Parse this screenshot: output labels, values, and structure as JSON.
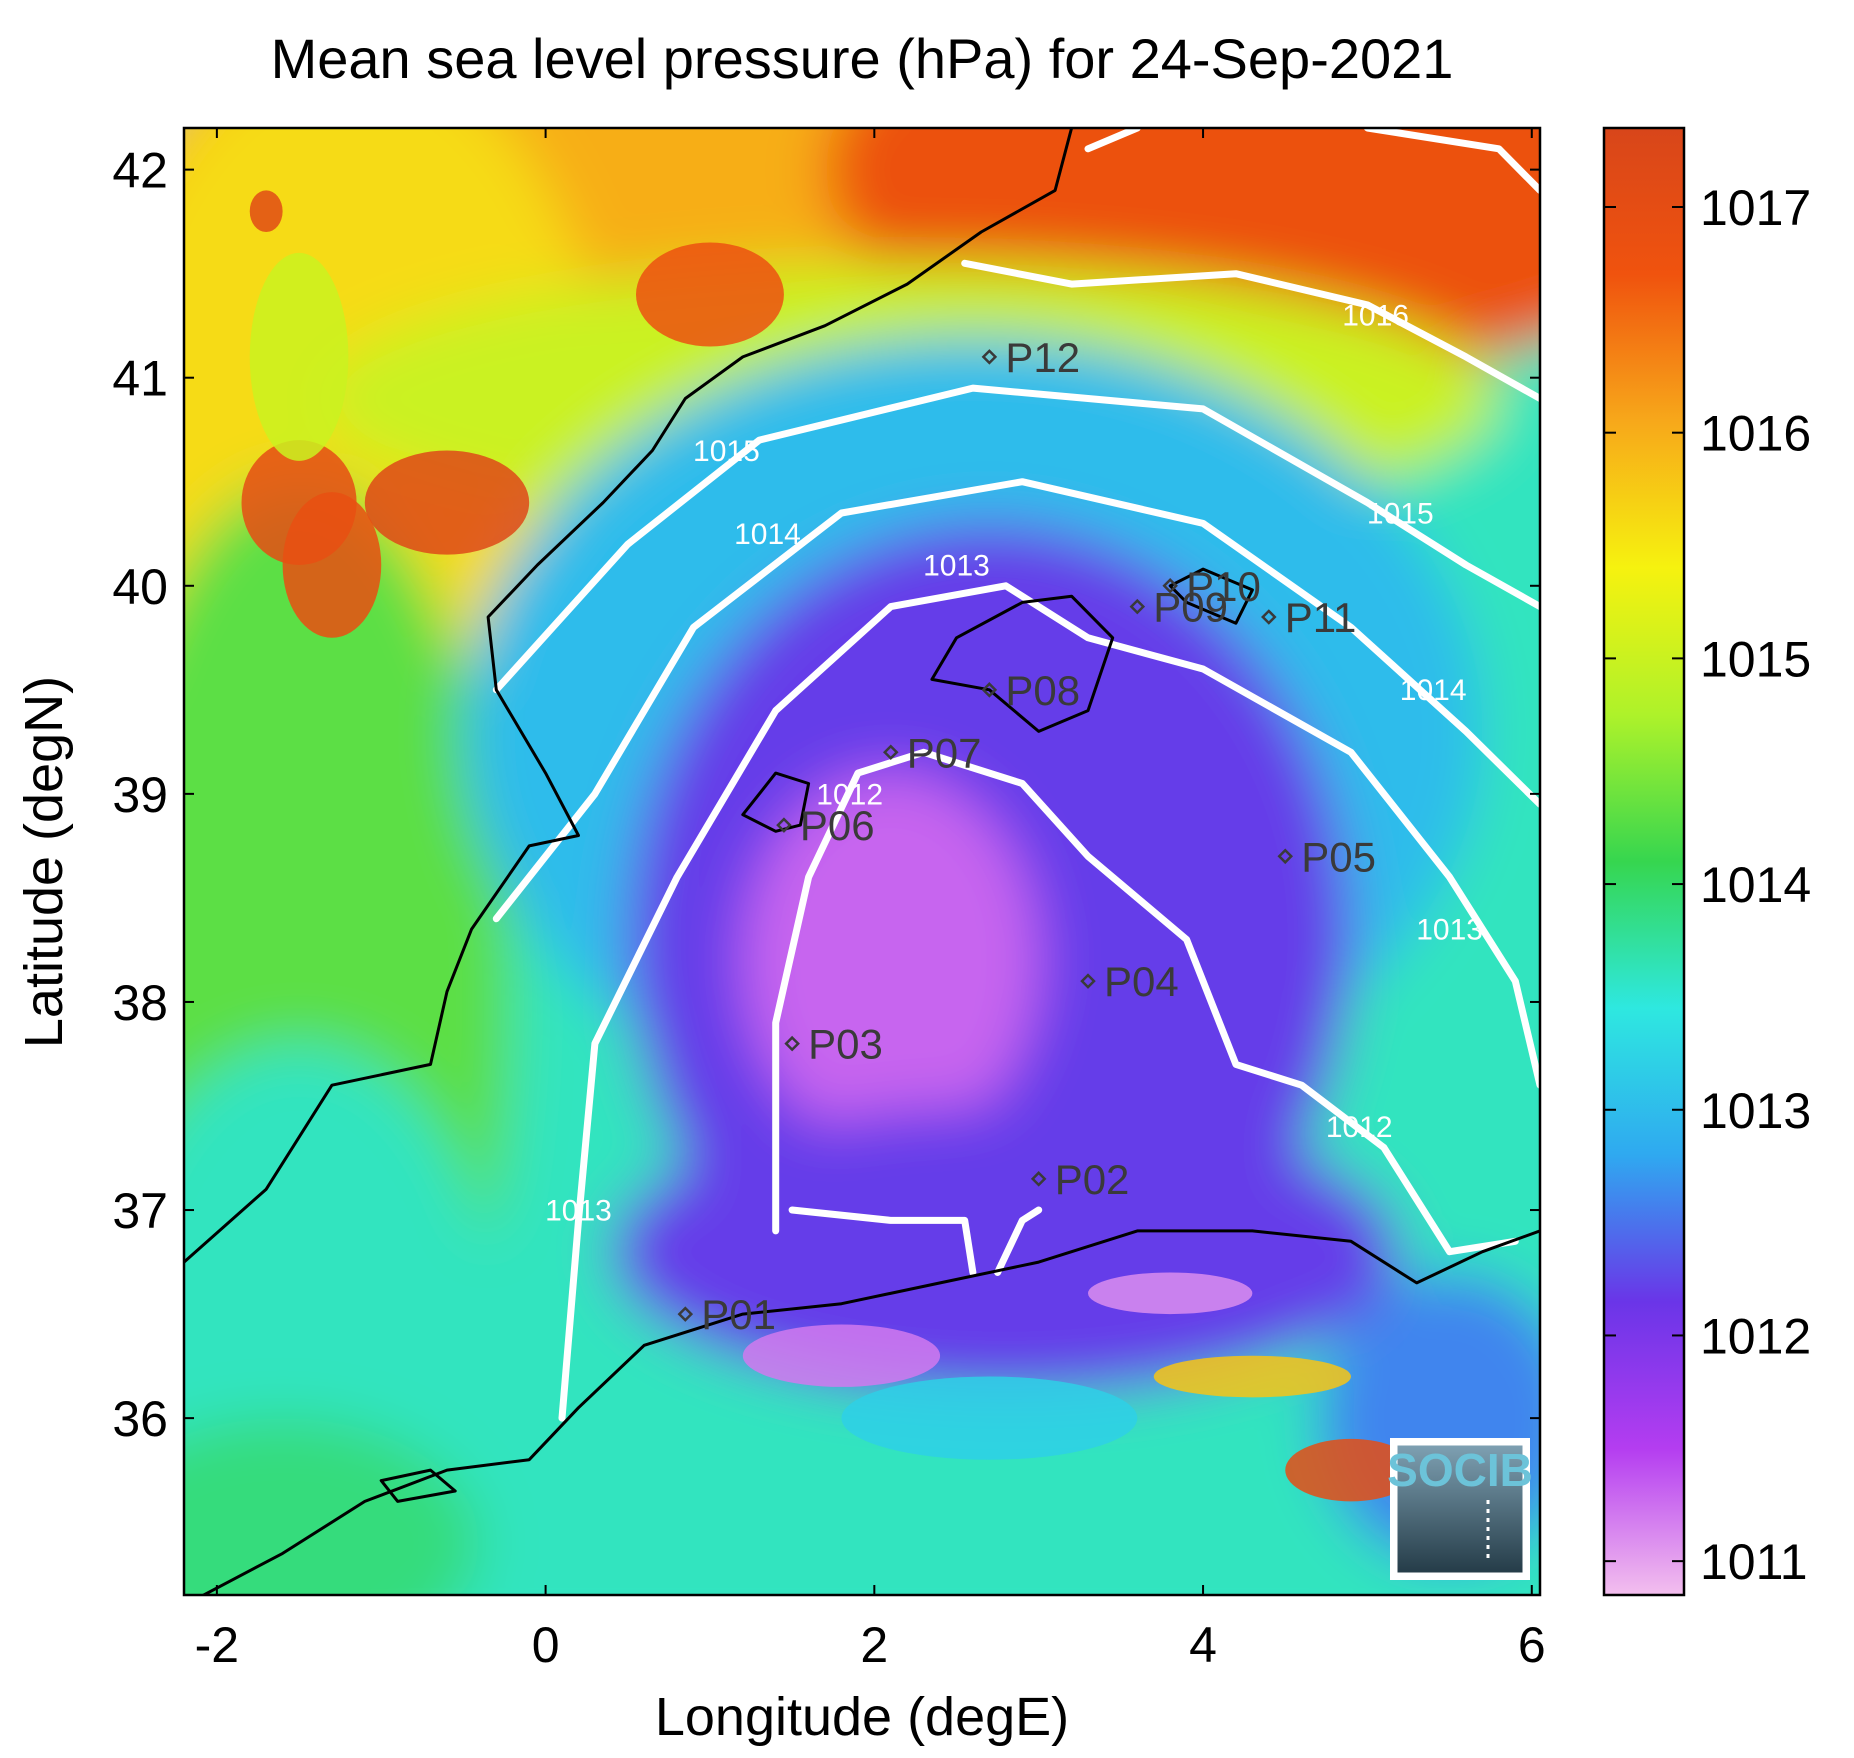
{
  "title": "Mean sea level pressure (hPa) for 24-Sep-2021",
  "xlabel": "Longitude (degE)",
  "ylabel": "Latitude (degN)",
  "x_ticks": [
    -2,
    0,
    2,
    4,
    6
  ],
  "y_ticks": [
    36,
    37,
    38,
    39,
    40,
    41,
    42
  ],
  "colorbar": {
    "ticks": [
      1011,
      1012,
      1013,
      1014,
      1015,
      1016,
      1017
    ],
    "colors": [
      "#f3bfee",
      "#b43df0",
      "#6a35e8",
      "#2fa9f0",
      "#2ee8e0",
      "#36d64f",
      "#aef22a",
      "#f6f20f",
      "#f7a81a",
      "#f0530e",
      "#d8461a"
    ]
  },
  "logo": {
    "text": "SOCIB",
    "colors": {
      "border": "#6cc3d9",
      "top": "#7fa1b3",
      "bottom": "#243b47"
    }
  },
  "chart_data": {
    "type": "heatmap",
    "title": "Mean sea level pressure (hPa) for 24-Sep-2021",
    "xlabel": "Longitude (degE)",
    "ylabel": "Latitude (degN)",
    "xlim": [
      -2.2,
      6.05
    ],
    "ylim": [
      35.15,
      42.2
    ],
    "color_range": [
      1010.85,
      1017.35
    ],
    "contour_levels": [
      {
        "value": 1012,
        "label": "1012"
      },
      {
        "value": 1013,
        "label": "1013"
      },
      {
        "value": 1014,
        "label": "1014"
      },
      {
        "value": 1015,
        "label": "1015"
      },
      {
        "value": 1016,
        "label": "1016"
      }
    ],
    "contour_labels": [
      {
        "text": "1012",
        "lon": 1.85,
        "lat": 38.95
      },
      {
        "text": "1012",
        "lon": 4.95,
        "lat": 37.35
      },
      {
        "text": "1013",
        "lon": 0.2,
        "lat": 36.95
      },
      {
        "text": "1013",
        "lon": 2.5,
        "lat": 40.05
      },
      {
        "text": "1013",
        "lon": 5.5,
        "lat": 38.3
      },
      {
        "text": "1014",
        "lon": 1.35,
        "lat": 40.2
      },
      {
        "text": "1014",
        "lon": 5.4,
        "lat": 39.45
      },
      {
        "text": "1015",
        "lon": 1.1,
        "lat": 40.6
      },
      {
        "text": "1015",
        "lon": 5.2,
        "lat": 40.3
      },
      {
        "text": "1016",
        "lon": 5.05,
        "lat": 41.25
      }
    ],
    "stations": [
      {
        "name": "P01",
        "lon": 0.85,
        "lat": 36.5
      },
      {
        "name": "P02",
        "lon": 3.0,
        "lat": 37.15
      },
      {
        "name": "P03",
        "lon": 1.5,
        "lat": 37.8
      },
      {
        "name": "P04",
        "lon": 3.3,
        "lat": 38.1
      },
      {
        "name": "P05",
        "lon": 4.5,
        "lat": 38.7
      },
      {
        "name": "P06",
        "lon": 1.45,
        "lat": 38.85
      },
      {
        "name": "P07",
        "lon": 2.1,
        "lat": 39.2
      },
      {
        "name": "P08",
        "lon": 2.7,
        "lat": 39.5
      },
      {
        "name": "P09",
        "lon": 3.6,
        "lat": 39.9
      },
      {
        "name": "P10",
        "lon": 3.8,
        "lat": 40.0
      },
      {
        "name": "P11",
        "lon": 4.4,
        "lat": 39.85
      },
      {
        "name": "P12",
        "lon": 2.7,
        "lat": 41.1
      }
    ]
  }
}
